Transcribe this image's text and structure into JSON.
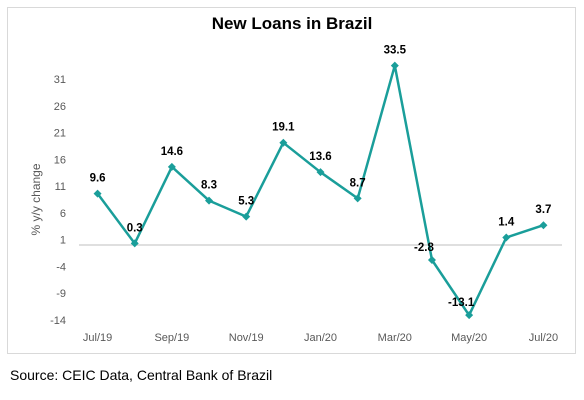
{
  "chart_data": {
    "type": "line",
    "title": "New Loans in Brazil",
    "ylabel": "% y/y change",
    "xlabel": "",
    "x": [
      "Jul/19",
      "Aug/19",
      "Sep/19",
      "Oct/19",
      "Nov/19",
      "Dec/19",
      "Jan/20",
      "Feb/20",
      "Mar/20",
      "Apr/20",
      "May/20",
      "Jun/20",
      "Jul/20"
    ],
    "x_tick_labels": [
      "Jul/19",
      "",
      "Sep/19",
      "",
      "Nov/19",
      "",
      "Jan/20",
      "",
      "Mar/20",
      "",
      "May/20",
      "",
      "Jul/20"
    ],
    "series": [
      {
        "values": [
          9.6,
          0.3,
          14.6,
          8.3,
          5.3,
          19.1,
          13.6,
          8.7,
          33.5,
          -2.8,
          -13.1,
          1.4,
          3.7
        ]
      }
    ],
    "data_labels": [
      "9.6",
      "0.3",
      "14.6",
      "8.3",
      "5.3",
      "19.1",
      "13.6",
      "8.7",
      "33.5",
      "-2.8",
      "-13.1",
      "1.4",
      "3.7"
    ],
    "ylim": [
      -14,
      31
    ],
    "y_ticks": [
      31,
      26,
      21,
      16,
      11,
      6,
      1,
      -4,
      -9,
      -14
    ],
    "grid": false,
    "legend": "none",
    "colors": {
      "line": "#1a9e9a",
      "marker": "#1a9e9a",
      "axis": "#bfbfbf"
    }
  },
  "source": "Source: CEIC Data, Central Bank of Brazil"
}
